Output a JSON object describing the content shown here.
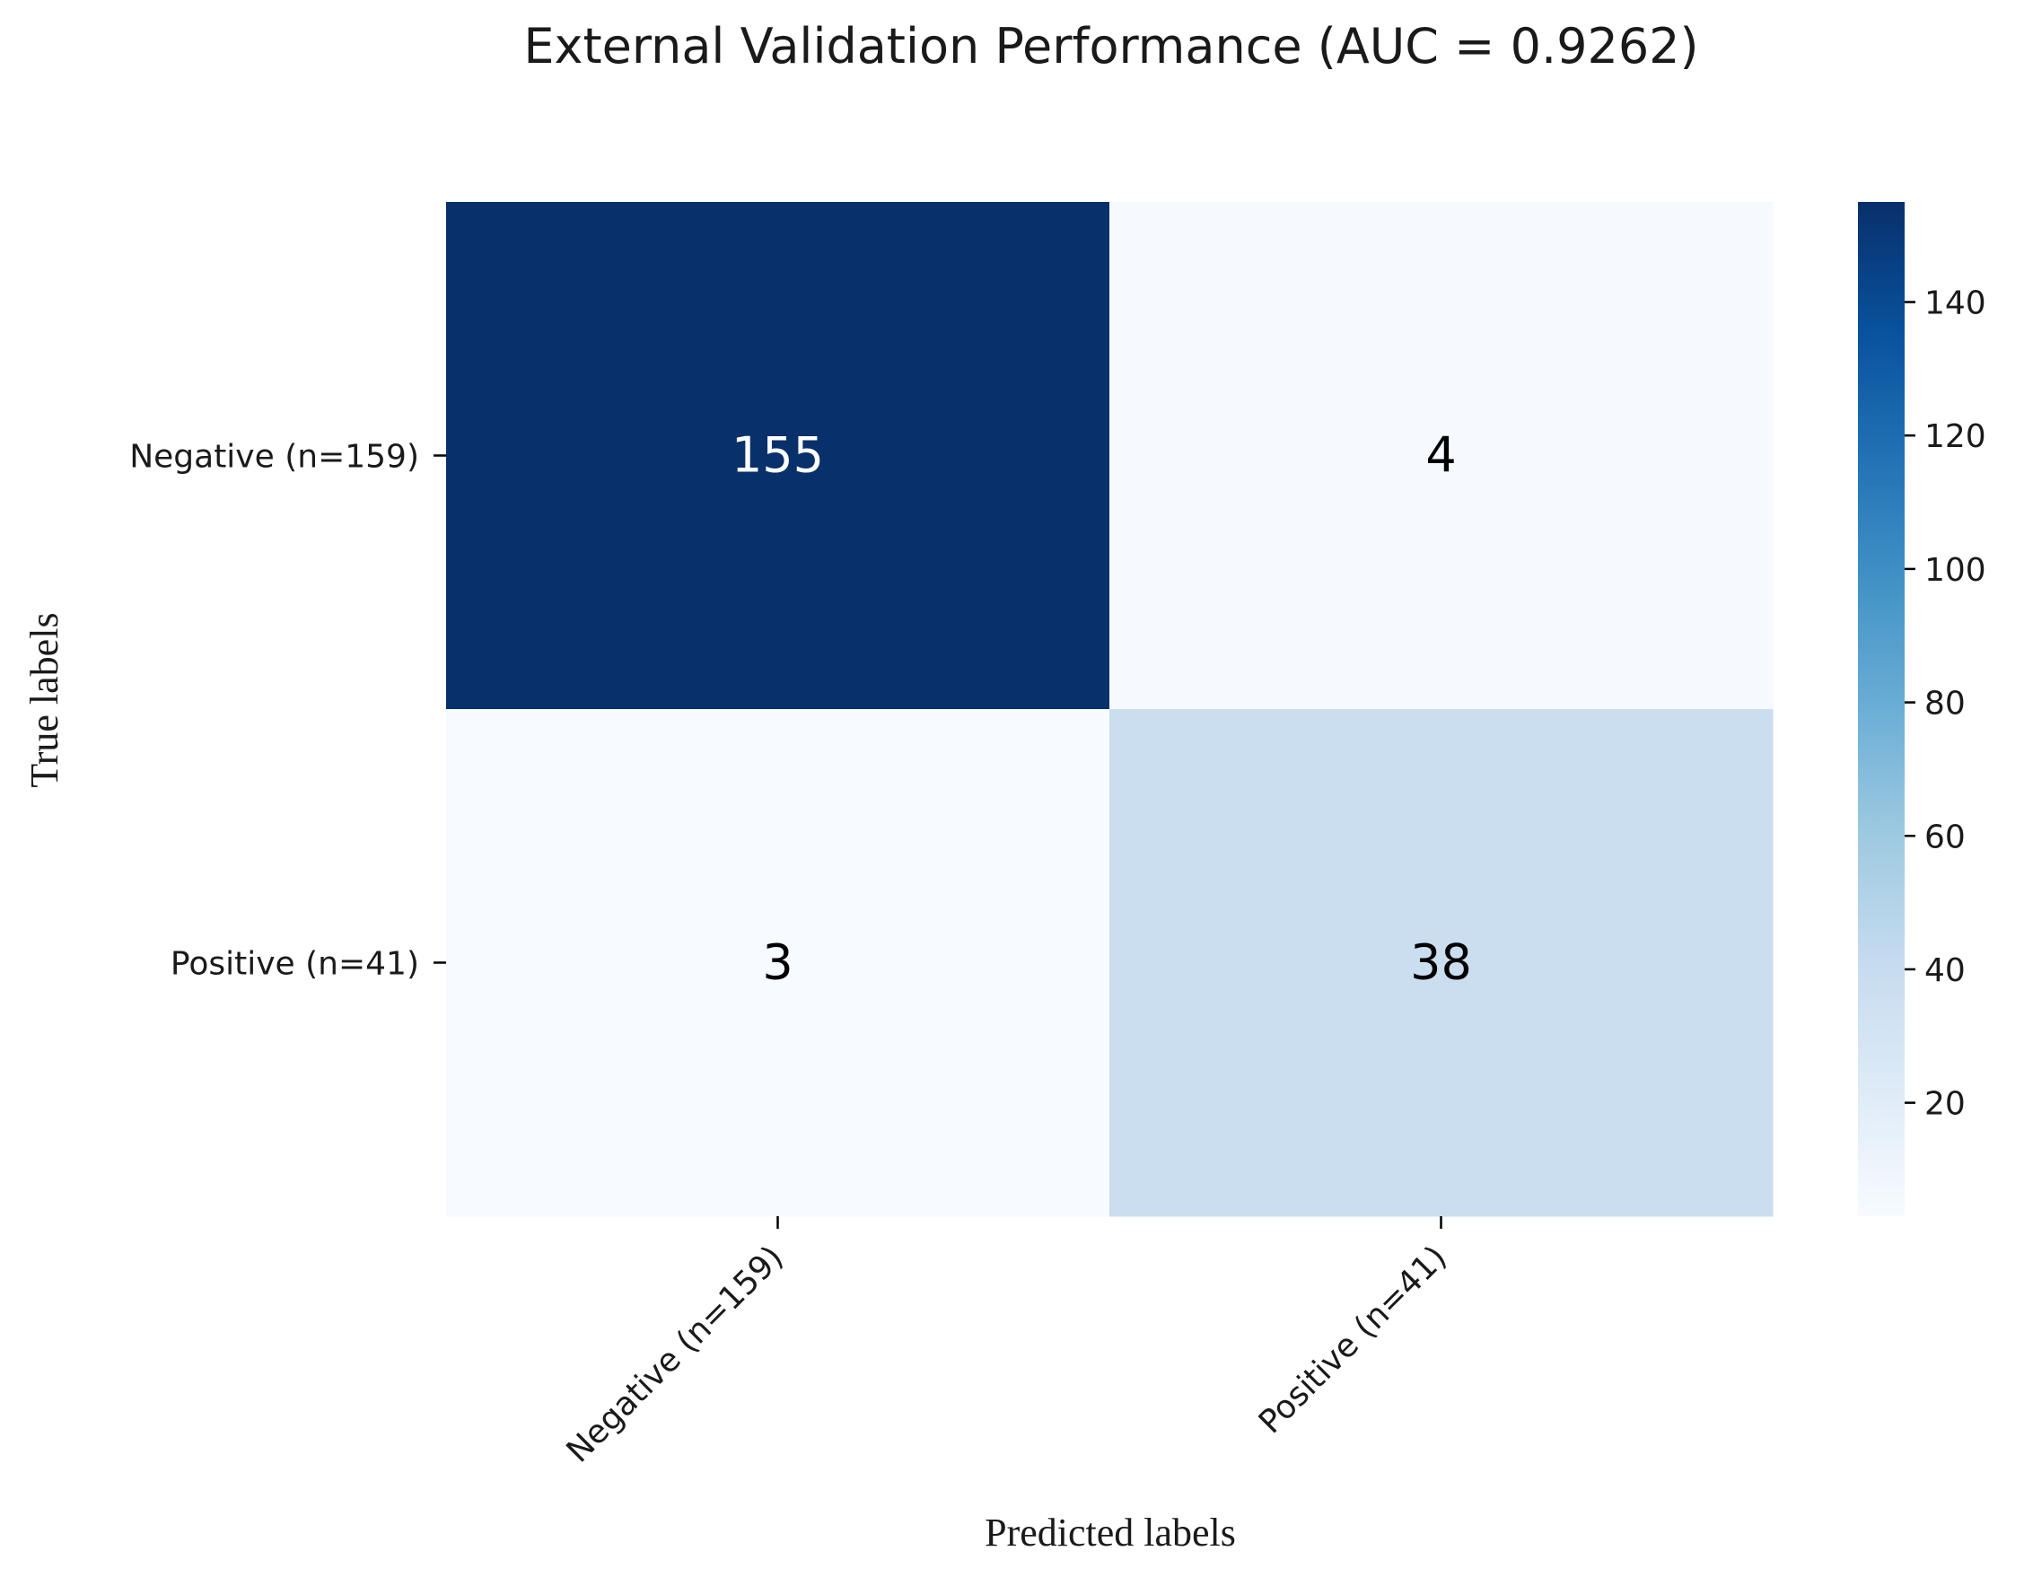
{
  "chart_data": {
    "type": "heatmap",
    "title": "External Validation Performance (AUC = 0.9262)",
    "xlabel": "Predicted labels",
    "ylabel": "True labels",
    "x_categories": [
      "Negative (n=159)",
      "Positive (n=41)"
    ],
    "y_categories": [
      "Negative (n=159)",
      "Positive (n=41)"
    ],
    "values": [
      [
        155,
        4
      ],
      [
        3,
        38
      ]
    ],
    "colormap": "Blues",
    "colorbar": {
      "range": [
        3,
        155
      ],
      "ticks": [
        20,
        40,
        60,
        80,
        100,
        120,
        140
      ]
    },
    "grid": false,
    "annotations": true
  }
}
